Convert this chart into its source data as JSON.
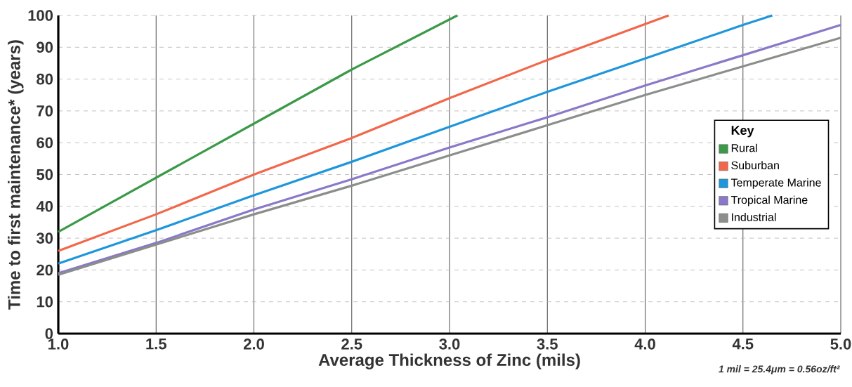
{
  "chart_data": {
    "type": "line",
    "xlabel": "Average Thickness of Zinc (mils)",
    "ylabel": "Time to first maintenance* (years)",
    "legend_title": "Key",
    "annotations": [
      "1 mil = 25.4μm = 0.56oz/ft²"
    ],
    "xlim": [
      1.0,
      5.0
    ],
    "ylim": [
      0,
      100
    ],
    "xticks": [
      {
        "value": 1.0,
        "label": "1.0"
      },
      1.5,
      {
        "value": 2.0,
        "label": "2.0"
      },
      2.5,
      {
        "value": 3.0,
        "label": "3.0"
      },
      3.5,
      {
        "value": 4.0,
        "label": "4.0"
      },
      4.5,
      {
        "value": 5.0,
        "label": "5.0"
      }
    ],
    "yticks": [
      0,
      10,
      20,
      30,
      40,
      50,
      60,
      70,
      80,
      90,
      100
    ],
    "grid": true,
    "legend": "right",
    "marker": "none",
    "line_style": "solid",
    "series": [
      {
        "name": "Rural",
        "color": "#3a9a48",
        "x": [
          1.0,
          1.5,
          2.0,
          2.5,
          3.04
        ],
        "values": [
          32,
          49,
          66,
          83,
          100
        ]
      },
      {
        "name": "Suburban",
        "color": "#f2674a",
        "x": [
          1.0,
          1.5,
          2.0,
          2.5,
          3.0,
          3.5,
          4.12
        ],
        "values": [
          26,
          37.5,
          50,
          61.5,
          74,
          86,
          100
        ]
      },
      {
        "name": "Temperate Marine",
        "color": "#1e96dc",
        "x": [
          1.0,
          1.5,
          2.0,
          2.5,
          3.0,
          3.5,
          4.0,
          4.5,
          4.65
        ],
        "values": [
          22,
          32.5,
          43.5,
          54,
          65,
          76,
          86.5,
          97,
          100
        ]
      },
      {
        "name": "Tropical Marine",
        "color": "#8a78c8",
        "x": [
          1.0,
          1.5,
          2.0,
          2.5,
          3.0,
          3.5,
          4.0,
          4.5,
          5.0
        ],
        "values": [
          19,
          28.5,
          39,
          48.5,
          58.5,
          68,
          78,
          87.5,
          97
        ]
      },
      {
        "name": "Industrial",
        "color": "#8a8f8a",
        "x": [
          1.0,
          1.5,
          2.0,
          2.5,
          3.0,
          3.5,
          4.0,
          4.5,
          5.0
        ],
        "values": [
          18.5,
          28,
          37.5,
          46.5,
          56,
          65.5,
          75,
          84,
          93
        ]
      }
    ]
  }
}
